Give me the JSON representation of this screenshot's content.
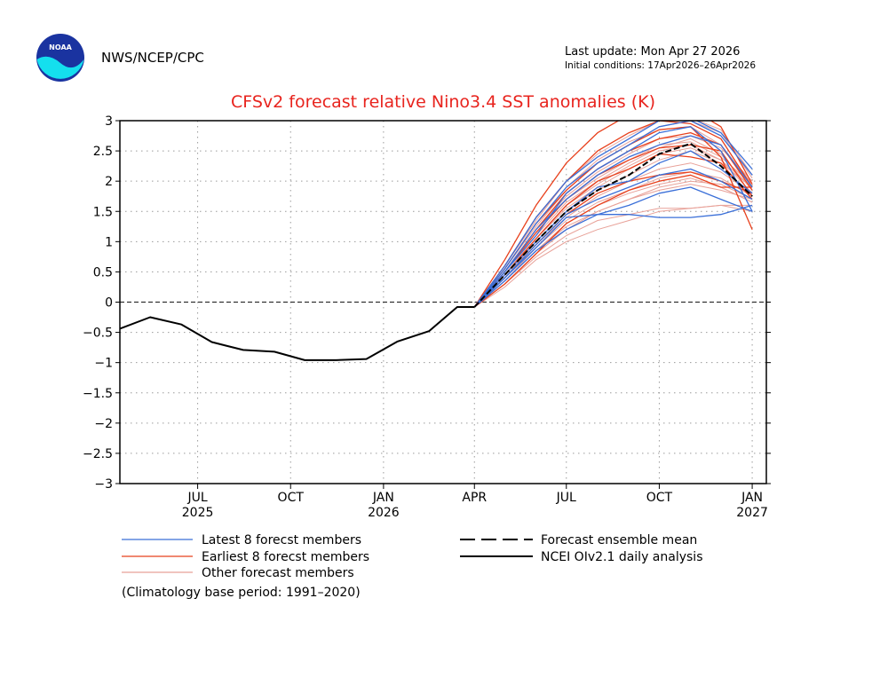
{
  "header": {
    "agency": "NWS/NCEP/CPC",
    "last_update": "Last update: Mon Apr 27 2026",
    "initial_conditions": "Initial conditions: 17Apr2026–26Apr2026",
    "logo_text": "NOAA"
  },
  "footnote": "(Climatology base period: 1991–2020)",
  "colors": {
    "title": "#e8241e",
    "latest": "#3a6fd8",
    "earliest": "#e8401c",
    "other": "#e8a198",
    "mean": "#000000",
    "analysis": "#000000",
    "logo_blue": "#1a33a0",
    "logo_cyan": "#14dfee"
  },
  "chart_data": {
    "type": "line",
    "title": "CFSv2 forecast relative Nino3.4 SST anomalies (K)",
    "ylim": [
      -3,
      3
    ],
    "yticks": [
      -3,
      -2.5,
      -2,
      -1.5,
      -1,
      -0.5,
      0,
      0.5,
      1,
      1.5,
      2,
      2.5,
      3
    ],
    "xlim": [
      "2025-04-15",
      "2027-01-15"
    ],
    "xticks": [
      {
        "date": "2025-07-01",
        "label": "JUL",
        "year": "2025"
      },
      {
        "date": "2025-10-01",
        "label": "OCT",
        "year": ""
      },
      {
        "date": "2026-01-01",
        "label": "JAN",
        "year": "2026"
      },
      {
        "date": "2026-04-01",
        "label": "APR",
        "year": ""
      },
      {
        "date": "2026-07-01",
        "label": "JUL",
        "year": ""
      },
      {
        "date": "2026-10-01",
        "label": "OCT",
        "year": ""
      },
      {
        "date": "2027-01-01",
        "label": "JAN",
        "year": "2027"
      }
    ],
    "grid": true,
    "zero_line": true,
    "legend_placement": "below",
    "legend": [
      {
        "key": "latest",
        "label": "Latest 8 forecst members"
      },
      {
        "key": "earliest",
        "label": "Earliest 8 forecst members"
      },
      {
        "key": "other",
        "label": "Other forecast members"
      },
      {
        "key": "mean",
        "label": "Forecast ensemble mean"
      },
      {
        "key": "analysis",
        "label": "NCEI OIv2.1 daily analysis"
      }
    ],
    "forecast_x": [
      "2026-04-01",
      "2026-05-01",
      "2026-06-01",
      "2026-07-01",
      "2026-08-01",
      "2026-09-01",
      "2026-10-01",
      "2026-11-01",
      "2026-12-01",
      "2027-01-01"
    ],
    "observed": {
      "x": [
        "2025-04-15",
        "2025-05-15",
        "2025-06-15",
        "2025-07-15",
        "2025-08-15",
        "2025-09-15",
        "2025-10-15",
        "2025-11-15",
        "2025-12-15",
        "2026-01-15",
        "2026-02-15",
        "2026-03-15",
        "2026-04-01"
      ],
      "y": [
        -0.44,
        -0.25,
        -0.37,
        -0.66,
        -0.79,
        -0.82,
        -0.96,
        -0.96,
        -0.94,
        -0.65,
        -0.48,
        -0.08,
        -0.08
      ]
    },
    "mean": [
      -0.08,
      0.45,
      1.0,
      1.5,
      1.85,
      2.1,
      2.45,
      2.62,
      2.25,
      1.75
    ],
    "latest": [
      [
        -0.08,
        0.6,
        1.4,
        2.0,
        2.4,
        2.7,
        3.0,
        3.05,
        2.8,
        2.2
      ],
      [
        -0.08,
        0.5,
        1.2,
        1.7,
        2.1,
        2.4,
        2.6,
        2.75,
        2.6,
        1.9
      ],
      [
        -0.08,
        0.4,
        0.9,
        1.4,
        1.45,
        1.45,
        1.4,
        1.4,
        1.45,
        1.6
      ],
      [
        -0.08,
        0.5,
        1.1,
        1.8,
        2.2,
        2.5,
        2.8,
        2.9,
        2.5,
        1.5
      ],
      [
        -0.08,
        0.45,
        1.0,
        1.5,
        1.9,
        2.0,
        2.3,
        2.5,
        2.2,
        1.8
      ],
      [
        -0.08,
        0.35,
        0.85,
        1.2,
        1.45,
        1.6,
        1.8,
        1.9,
        1.7,
        1.5
      ],
      [
        -0.08,
        0.55,
        1.3,
        1.9,
        2.3,
        2.6,
        2.9,
        3.0,
        2.75,
        2.1
      ],
      [
        -0.08,
        0.4,
        0.95,
        1.45,
        1.7,
        1.9,
        2.1,
        2.2,
        2.0,
        1.7
      ]
    ],
    "earliest": [
      [
        -0.08,
        0.7,
        1.6,
        2.3,
        2.8,
        3.1,
        3.2,
        3.2,
        2.9,
        1.95
      ],
      [
        -0.08,
        0.6,
        1.4,
        2.0,
        2.5,
        2.8,
        3.0,
        2.95,
        2.7,
        1.9
      ],
      [
        -0.08,
        0.5,
        1.2,
        1.8,
        2.2,
        2.5,
        2.7,
        2.8,
        2.6,
        1.85
      ],
      [
        -0.08,
        0.45,
        1.05,
        1.6,
        2.0,
        2.2,
        2.45,
        2.4,
        2.3,
        1.7
      ],
      [
        -0.08,
        0.4,
        0.95,
        1.45,
        1.8,
        2.0,
        2.1,
        2.15,
        2.0,
        1.8
      ],
      [
        -0.08,
        0.55,
        1.3,
        1.85,
        2.3,
        2.6,
        2.85,
        2.9,
        2.4,
        1.2
      ],
      [
        -0.08,
        0.3,
        0.8,
        1.3,
        1.6,
        1.85,
        2.0,
        2.1,
        1.9,
        1.9
      ],
      [
        -0.08,
        0.5,
        1.15,
        1.7,
        2.1,
        2.35,
        2.55,
        2.6,
        2.5,
        1.75
      ]
    ],
    "other": [
      [
        -0.08,
        0.3,
        0.75,
        1.1,
        1.35,
        1.45,
        1.55,
        1.55,
        1.6,
        1.5
      ],
      [
        -0.08,
        0.35,
        0.85,
        1.25,
        1.5,
        1.7,
        1.85,
        1.95,
        1.85,
        1.7
      ],
      [
        -0.08,
        0.45,
        1.05,
        1.55,
        1.9,
        2.2,
        2.45,
        2.55,
        2.35,
        1.9
      ],
      [
        -0.08,
        0.5,
        1.2,
        1.75,
        2.15,
        2.45,
        2.7,
        2.75,
        2.55,
        2.0
      ],
      [
        -0.08,
        0.4,
        0.95,
        1.4,
        1.75,
        2.0,
        2.2,
        2.3,
        2.15,
        1.8
      ],
      [
        -0.08,
        0.25,
        0.7,
        1.0,
        1.2,
        1.35,
        1.5,
        1.55,
        1.6,
        1.6
      ],
      [
        -0.08,
        0.55,
        1.25,
        1.85,
        2.3,
        2.6,
        2.9,
        3.0,
        2.8,
        2.05
      ],
      [
        -0.08,
        0.45,
        1.1,
        1.65,
        2.0,
        2.3,
        2.55,
        2.7,
        2.45,
        1.85
      ],
      [
        -0.08,
        0.35,
        0.9,
        1.35,
        1.65,
        1.85,
        2.05,
        2.15,
        2.05,
        1.75
      ],
      [
        -0.08,
        0.5,
        1.15,
        1.7,
        2.05,
        2.35,
        2.6,
        2.65,
        2.4,
        1.95
      ],
      [
        -0.08,
        0.4,
        1.0,
        1.5,
        1.85,
        2.1,
        2.35,
        2.5,
        2.3,
        1.9
      ],
      [
        -0.08,
        0.6,
        1.35,
        2.0,
        2.45,
        2.75,
        3.0,
        3.05,
        2.85,
        2.1
      ],
      [
        -0.08,
        0.3,
        0.8,
        1.2,
        1.5,
        1.7,
        1.9,
        2.0,
        1.95,
        1.7
      ],
      [
        -0.08,
        0.45,
        1.05,
        1.6,
        1.95,
        2.25,
        2.5,
        2.6,
        2.35,
        1.8
      ],
      [
        -0.08,
        0.35,
        0.85,
        1.3,
        1.6,
        1.8,
        1.95,
        2.05,
        1.9,
        1.65
      ],
      [
        -0.08,
        0.55,
        1.3,
        1.9,
        2.35,
        2.65,
        2.85,
        2.9,
        2.6,
        1.95
      ]
    ]
  }
}
